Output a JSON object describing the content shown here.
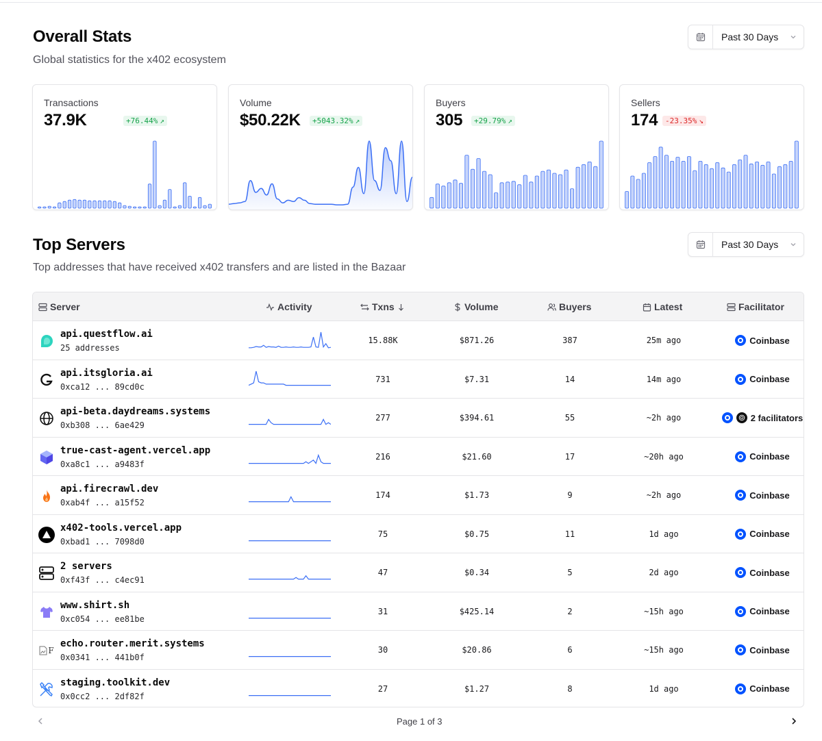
{
  "overall": {
    "title": "Overall Stats",
    "subtitle": "Global statistics for the x402 ecosystem",
    "range_label": "Past 30 Days"
  },
  "cards": [
    {
      "label": "Transactions",
      "value": "37.9K",
      "change": "+76.44%",
      "trend": "up",
      "chart_data": {
        "type": "bar",
        "values": [
          1,
          2,
          3,
          2,
          8,
          10,
          12,
          13,
          12,
          12,
          11,
          11,
          11,
          11,
          11,
          10,
          8,
          4,
          3,
          2,
          2,
          2,
          36,
          100,
          4,
          12,
          28,
          2,
          4,
          38,
          18,
          2,
          16,
          4,
          6
        ]
      }
    },
    {
      "label": "Volume",
      "value": "$50.22K",
      "change": "+5043.32%",
      "trend": "up",
      "chart_data": {
        "type": "area",
        "values": [
          4,
          5,
          6,
          8,
          40,
          22,
          28,
          18,
          35,
          12,
          6,
          10,
          8,
          14,
          10,
          5,
          4,
          4,
          4,
          4,
          3,
          3,
          4,
          30,
          60,
          20,
          100,
          40,
          25,
          90,
          70,
          20,
          100,
          8,
          45
        ]
      }
    },
    {
      "label": "Buyers",
      "value": "305",
      "change": "+29.79%",
      "trend": "up",
      "chart_data": {
        "type": "bar",
        "values": [
          16,
          36,
          33,
          38,
          42,
          37,
          79,
          58,
          74,
          55,
          50,
          23,
          38,
          39,
          40,
          35,
          49,
          39,
          48,
          55,
          57,
          52,
          50,
          57,
          29,
          61,
          65,
          69,
          62,
          100
        ]
      }
    },
    {
      "label": "Sellers",
      "value": "174",
      "change": "-23.35%",
      "trend": "down",
      "chart_data": {
        "type": "bar",
        "values": [
          25,
          48,
          43,
          52,
          68,
          77,
          91,
          79,
          70,
          76,
          70,
          77,
          56,
          70,
          65,
          59,
          68,
          60,
          54,
          65,
          72,
          79,
          66,
          69,
          64,
          69,
          51,
          62,
          65,
          70,
          100
        ]
      }
    }
  ],
  "top_servers": {
    "title": "Top Servers",
    "subtitle": "Top addresses that have received x402 transfers and are listed in the Bazaar",
    "range_label": "Past 30 Days",
    "columns": {
      "server": "Server",
      "activity": "Activity",
      "txns": "Txns",
      "volume": "Volume",
      "buyers": "Buyers",
      "latest": "Latest",
      "facilitator": "Facilitator"
    },
    "rows": [
      {
        "name": "api.questflow.ai",
        "addr": "25 addresses",
        "icon": "questflow-logo",
        "txns": "15.88K",
        "volume": "$871.26",
        "buyers": "387",
        "latest": "25m ago",
        "facilitator": "Coinbase",
        "activity": [
          2,
          2,
          3,
          5,
          4,
          4,
          8,
          3,
          5,
          4,
          4,
          3,
          6,
          3,
          3,
          4,
          3,
          3,
          4,
          3,
          3,
          4,
          3,
          3,
          3,
          4,
          28,
          4,
          3,
          40,
          4,
          12,
          2,
          3
        ]
      },
      {
        "name": "api.itsgloria.ai",
        "addr": "0xca12 ... 89cd0c",
        "icon": "gloria-logo",
        "txns": "731",
        "volume": "$7.31",
        "buyers": "14",
        "latest": "14m ago",
        "facilitator": "Coinbase",
        "activity": [
          2,
          3,
          4,
          14,
          5,
          4,
          4,
          3,
          3,
          3,
          3,
          3,
          3,
          3,
          3,
          2,
          2,
          2,
          2,
          2,
          2,
          2,
          2,
          2,
          2,
          2,
          2,
          2,
          2,
          2,
          2,
          2,
          2,
          2
        ]
      },
      {
        "name": "api-beta.daydreams.systems",
        "addr": "0xb308 ... 6ae429",
        "icon": "globe-icon",
        "txns": "277",
        "volume": "$394.61",
        "buyers": "55",
        "latest": "~2h ago",
        "facilitator": "2 facilitators",
        "activity": [
          1,
          1,
          1,
          1,
          1,
          1,
          1,
          1,
          4,
          2,
          1,
          1,
          1,
          1,
          1,
          1,
          1,
          1,
          1,
          1,
          1,
          1,
          1,
          1,
          1,
          1,
          1,
          1,
          1,
          1,
          4,
          1,
          2,
          1
        ]
      },
      {
        "name": "true-cast-agent.vercel.app",
        "addr": "0xa8c1 ... a9483f",
        "icon": "truecast-logo",
        "txns": "216",
        "volume": "$21.60",
        "buyers": "17",
        "latest": "~20h ago",
        "facilitator": "Coinbase",
        "activity": [
          1,
          1,
          1,
          1,
          1,
          1,
          1,
          1,
          1,
          1,
          1,
          1,
          1,
          1,
          1,
          1,
          1,
          1,
          1,
          1,
          1,
          1,
          1,
          2,
          1,
          2,
          3,
          1,
          6,
          2,
          1,
          1,
          1,
          1
        ]
      },
      {
        "name": "api.firecrawl.dev",
        "addr": "0xab4f ... a15f52",
        "icon": "flame-icon",
        "txns": "174",
        "volume": "$1.73",
        "buyers": "9",
        "latest": "~2h ago",
        "facilitator": "Coinbase",
        "activity": [
          1,
          1,
          1,
          1,
          1,
          1,
          1,
          1,
          1,
          1,
          1,
          1,
          1,
          1,
          1,
          1,
          1,
          4,
          1,
          1,
          1,
          1,
          1,
          1,
          1,
          1,
          1,
          1,
          1,
          1,
          1,
          1,
          1,
          1
        ]
      },
      {
        "name": "x402-tools.vercel.app",
        "addr": "0xbad1 ... 7098d0",
        "icon": "vercel-logo",
        "txns": "75",
        "volume": "$0.75",
        "buyers": "11",
        "latest": "1d ago",
        "facilitator": "Coinbase",
        "activity": [
          1,
          1,
          1,
          1,
          1,
          1,
          1,
          1,
          1,
          1,
          1,
          1,
          1,
          1,
          1,
          1,
          1,
          1,
          1,
          1,
          1,
          1,
          1,
          1,
          1,
          1,
          1,
          1,
          1,
          1,
          1,
          1,
          1,
          1
        ]
      },
      {
        "name": "2 servers",
        "addr": "0xf43f ... c4ec91",
        "icon": "server-icon",
        "txns": "47",
        "volume": "$0.34",
        "buyers": "5",
        "latest": "2d ago",
        "facilitator": "Coinbase",
        "activity": [
          1,
          1,
          1,
          1,
          1,
          1,
          1,
          1,
          1,
          1,
          1,
          1,
          1,
          1,
          1,
          1,
          1,
          1,
          1,
          2,
          1,
          1,
          1,
          3,
          1,
          1,
          1,
          1,
          1,
          1,
          1,
          1,
          1,
          1
        ]
      },
      {
        "name": "www.shirt.sh",
        "addr": "0xc054 ... ee81be",
        "icon": "shirt-icon",
        "txns": "31",
        "volume": "$425.14",
        "buyers": "2",
        "latest": "~15h ago",
        "facilitator": "Coinbase",
        "activity": [
          1,
          1,
          1,
          1,
          1,
          1,
          1,
          1,
          1,
          1,
          1,
          1,
          1,
          1,
          1,
          1,
          1,
          1,
          1,
          1,
          1,
          1,
          1,
          1,
          1,
          1,
          1,
          1,
          1,
          1,
          1,
          1,
          1,
          1
        ]
      },
      {
        "name": "echo.router.merit.systems",
        "addr": "0x0341 ... 441b0f",
        "icon": "broken-image-icon",
        "icon_text": "F",
        "txns": "30",
        "volume": "$20.86",
        "buyers": "6",
        "latest": "~15h ago",
        "facilitator": "Coinbase",
        "activity": [
          1,
          1,
          1,
          1,
          1,
          1,
          1,
          1,
          1,
          1,
          1,
          1,
          1,
          1,
          1,
          1,
          1,
          1,
          1,
          1,
          1,
          1,
          1,
          1,
          1,
          1,
          1,
          1,
          1,
          1,
          1,
          1,
          1,
          1
        ]
      },
      {
        "name": "staging.toolkit.dev",
        "addr": "0x0cc2 ... 2df82f",
        "icon": "tools-icon",
        "txns": "27",
        "volume": "$1.27",
        "buyers": "8",
        "latest": "1d ago",
        "facilitator": "Coinbase",
        "activity": [
          1,
          1,
          1,
          1,
          1,
          1,
          1,
          1,
          1,
          1,
          1,
          1,
          1,
          1,
          1,
          1,
          1,
          1,
          1,
          1,
          1,
          1,
          1,
          1,
          1,
          1,
          1,
          1,
          1,
          1,
          1,
          1,
          1,
          1
        ]
      }
    ]
  },
  "pager": {
    "label": "Page 1 of 3"
  },
  "colors": {
    "accent": "#3b6ff5",
    "bar_fill": "#c7d5fb",
    "coinbase": "#0052ff",
    "up": "#16a34a",
    "down": "#dc2626"
  }
}
